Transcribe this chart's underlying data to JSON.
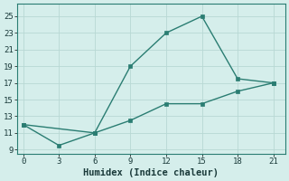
{
  "line1_x": [
    0,
    6,
    9,
    12,
    15,
    18,
    21
  ],
  "line1_y": [
    12,
    11,
    19,
    23,
    25,
    17.5,
    17
  ],
  "line2_x": [
    0,
    3,
    6,
    9,
    12,
    15,
    18,
    21
  ],
  "line2_y": [
    12,
    9.5,
    11,
    12.5,
    14.5,
    14.5,
    16,
    17
  ],
  "line_color": "#2a7d72",
  "bg_color": "#d5eeeb",
  "grid_color": "#b8d8d4",
  "xlabel": "Humidex (Indice chaleur)",
  "xlim": [
    -0.5,
    22
  ],
  "ylim": [
    8.5,
    26.5
  ],
  "xticks": [
    0,
    3,
    6,
    9,
    12,
    15,
    18,
    21
  ],
  "yticks": [
    9,
    11,
    13,
    15,
    17,
    19,
    21,
    23,
    25
  ],
  "xlabel_fontsize": 7.5,
  "tick_fontsize": 6.5
}
